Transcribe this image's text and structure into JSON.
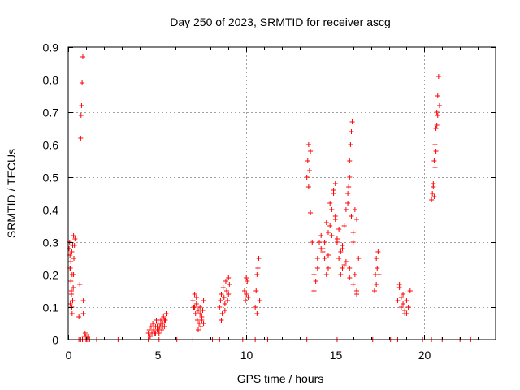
{
  "chart_data": {
    "type": "scatter",
    "title": "Day 250 of 2023, SRMTID for receiver ascg",
    "xlabel": "GPS time / hours",
    "ylabel": "SRMTID / TECUs",
    "xlim": [
      0,
      24
    ],
    "ylim": [
      0,
      0.9
    ],
    "xticks": [
      0,
      5,
      10,
      15,
      20
    ],
    "yticks": [
      0,
      0.1,
      0.2,
      0.3,
      0.4,
      0.5,
      0.6,
      0.7,
      0.8,
      0.9
    ],
    "xtick_labels": [
      "0",
      "5",
      "10",
      "15",
      "20"
    ],
    "ytick_labels": [
      "0",
      "0.1",
      "0.2",
      "0.3",
      "0.4",
      "0.5",
      "0.6",
      "0.7",
      "0.8",
      "0.9"
    ],
    "grid": true,
    "marker": "+",
    "color": "#ff0000",
    "series": [
      {
        "name": "SRMTID",
        "x": [
          0.05,
          0.08,
          0.1,
          0.12,
          0.15,
          0.18,
          0.2,
          0.22,
          0.25,
          0.28,
          0.3,
          0.32,
          0.35,
          0.38,
          0.1,
          0.15,
          0.2,
          0.25,
          0.3,
          0.22,
          0.18,
          0.12,
          0.6,
          0.65,
          0.7,
          0.72,
          0.75,
          0.78,
          0.82,
          0.85,
          0.9,
          0.95,
          1.0,
          1.05,
          1.1,
          1.15,
          0.8,
          0.85,
          0.7,
          1.2,
          1.6,
          4.5,
          4.55,
          4.6,
          4.65,
          4.7,
          4.75,
          4.8,
          4.85,
          4.9,
          4.95,
          5.0,
          5.05,
          5.1,
          5.15,
          5.2,
          5.25,
          5.3,
          5.35,
          5.4,
          5.45,
          5.5,
          4.6,
          4.7,
          4.8,
          4.9,
          5.0,
          5.1,
          5.2,
          5.3,
          5.4,
          7.0,
          7.05,
          7.1,
          7.15,
          7.2,
          7.25,
          7.3,
          7.35,
          7.4,
          7.45,
          7.5,
          7.55,
          7.6,
          7.2,
          7.3,
          7.4,
          7.5,
          7.1,
          7.6,
          8.5,
          8.55,
          8.6,
          8.65,
          8.7,
          8.75,
          8.8,
          8.85,
          8.9,
          8.95,
          9.0,
          9.05,
          8.6,
          8.8,
          9.0,
          9.9,
          9.95,
          10.0,
          10.05,
          10.1,
          10.0,
          10.5,
          10.55,
          10.6,
          10.65,
          10.7,
          10.75,
          10.6,
          13.4,
          13.45,
          13.5,
          13.55,
          13.6,
          13.5,
          13.6,
          13.7,
          13.8,
          13.9,
          14.0,
          14.1,
          14.2,
          14.3,
          14.4,
          14.5,
          14.6,
          14.7,
          14.8,
          14.9,
          15.0,
          15.1,
          15.2,
          15.3,
          15.4,
          15.5,
          15.6,
          15.7,
          15.8,
          15.9,
          16.0,
          16.1,
          16.2,
          16.3,
          13.8,
          14.0,
          14.2,
          14.4,
          14.6,
          14.8,
          15.0,
          15.2,
          15.4,
          15.6,
          15.8,
          16.0,
          16.2,
          14.5,
          14.7,
          14.9,
          15.1,
          15.3,
          15.5,
          14.3,
          14.6,
          15.0,
          15.4,
          15.8,
          15.7,
          15.75,
          15.8,
          15.85,
          15.9,
          15.95,
          16.0,
          16.1,
          16.2,
          17.2,
          17.25,
          17.3,
          17.35,
          17.4,
          17.45,
          17.3,
          18.5,
          18.6,
          18.7,
          18.8,
          18.9,
          19.0,
          19.1,
          19.2,
          18.6,
          18.8,
          19.0,
          18.7,
          18.9,
          20.4,
          20.45,
          20.5,
          20.55,
          20.6,
          20.65,
          20.7,
          20.75,
          20.8,
          20.5,
          20.6,
          20.7,
          20.55,
          20.65,
          20.75,
          20.85,
          0.6,
          0.8,
          1.0,
          1.6,
          2.8,
          4.5,
          5.1,
          6.1,
          7.0,
          8.1,
          8.5,
          9.8,
          10.5,
          11.2,
          13.4,
          15.1,
          17.1,
          18.1,
          18.5,
          19.9,
          20.4,
          21.0,
          22.0,
          22.6
        ],
        "y": [
          0.28,
          0.3,
          0.26,
          0.22,
          0.18,
          0.14,
          0.1,
          0.08,
          0.12,
          0.16,
          0.2,
          0.25,
          0.29,
          0.31,
          0.22,
          0.24,
          0.27,
          0.29,
          0.32,
          0.2,
          0.15,
          0.11,
          0.07,
          0.17,
          0.62,
          0.69,
          0.72,
          0.79,
          0.87,
          0.08,
          0.01,
          0.02,
          0.01,
          0.0,
          0.01,
          0.0,
          0.0,
          0.12,
          0.0,
          0.0,
          0.0,
          0.02,
          0.03,
          0.01,
          0.04,
          0.02,
          0.05,
          0.03,
          0.02,
          0.04,
          0.06,
          0.03,
          0.05,
          0.02,
          0.04,
          0.06,
          0.03,
          0.05,
          0.07,
          0.04,
          0.06,
          0.08,
          0.01,
          0.02,
          0.03,
          0.02,
          0.04,
          0.03,
          0.05,
          0.04,
          0.06,
          0.12,
          0.1,
          0.14,
          0.08,
          0.11,
          0.06,
          0.09,
          0.05,
          0.1,
          0.04,
          0.07,
          0.09,
          0.12,
          0.13,
          0.03,
          0.08,
          0.06,
          0.1,
          0.05,
          0.1,
          0.12,
          0.14,
          0.08,
          0.16,
          0.13,
          0.11,
          0.18,
          0.15,
          0.12,
          0.19,
          0.17,
          0.06,
          0.09,
          0.14,
          0.15,
          0.12,
          0.14,
          0.18,
          0.13,
          0.19,
          0.1,
          0.15,
          0.2,
          0.22,
          0.25,
          0.12,
          0.08,
          0.5,
          0.55,
          0.6,
          0.52,
          0.58,
          0.47,
          0.39,
          0.3,
          0.2,
          0.18,
          0.25,
          0.3,
          0.32,
          0.28,
          0.25,
          0.2,
          0.22,
          0.35,
          0.4,
          0.45,
          0.48,
          0.3,
          0.25,
          0.2,
          0.22,
          0.35,
          0.4,
          0.45,
          0.5,
          0.38,
          0.3,
          0.2,
          0.15,
          0.25,
          0.15,
          0.22,
          0.28,
          0.3,
          0.26,
          0.32,
          0.38,
          0.34,
          0.29,
          0.24,
          0.19,
          0.17,
          0.14,
          0.36,
          0.42,
          0.46,
          0.31,
          0.27,
          0.23,
          0.27,
          0.33,
          0.37,
          0.28,
          0.22,
          0.42,
          0.47,
          0.55,
          0.6,
          0.64,
          0.67,
          0.33,
          0.4,
          0.37,
          0.15,
          0.2,
          0.25,
          0.22,
          0.27,
          0.2,
          0.17,
          0.12,
          0.16,
          0.1,
          0.14,
          0.08,
          0.12,
          0.1,
          0.15,
          0.17,
          0.11,
          0.08,
          0.13,
          0.09,
          0.43,
          0.45,
          0.48,
          0.55,
          0.6,
          0.65,
          0.7,
          0.75,
          0.81,
          0.47,
          0.53,
          0.66,
          0.44,
          0.58,
          0.69,
          0.72,
          0.0,
          0.0,
          0.0,
          0.0,
          0.0,
          0.0,
          0.0,
          0.0,
          0.0,
          0.0,
          0.0,
          0.0,
          0.0,
          0.0,
          0.0,
          0.0,
          0.0,
          0.0,
          0.0,
          0.0,
          0.0,
          0.0,
          0.0,
          0.0
        ]
      }
    ]
  }
}
